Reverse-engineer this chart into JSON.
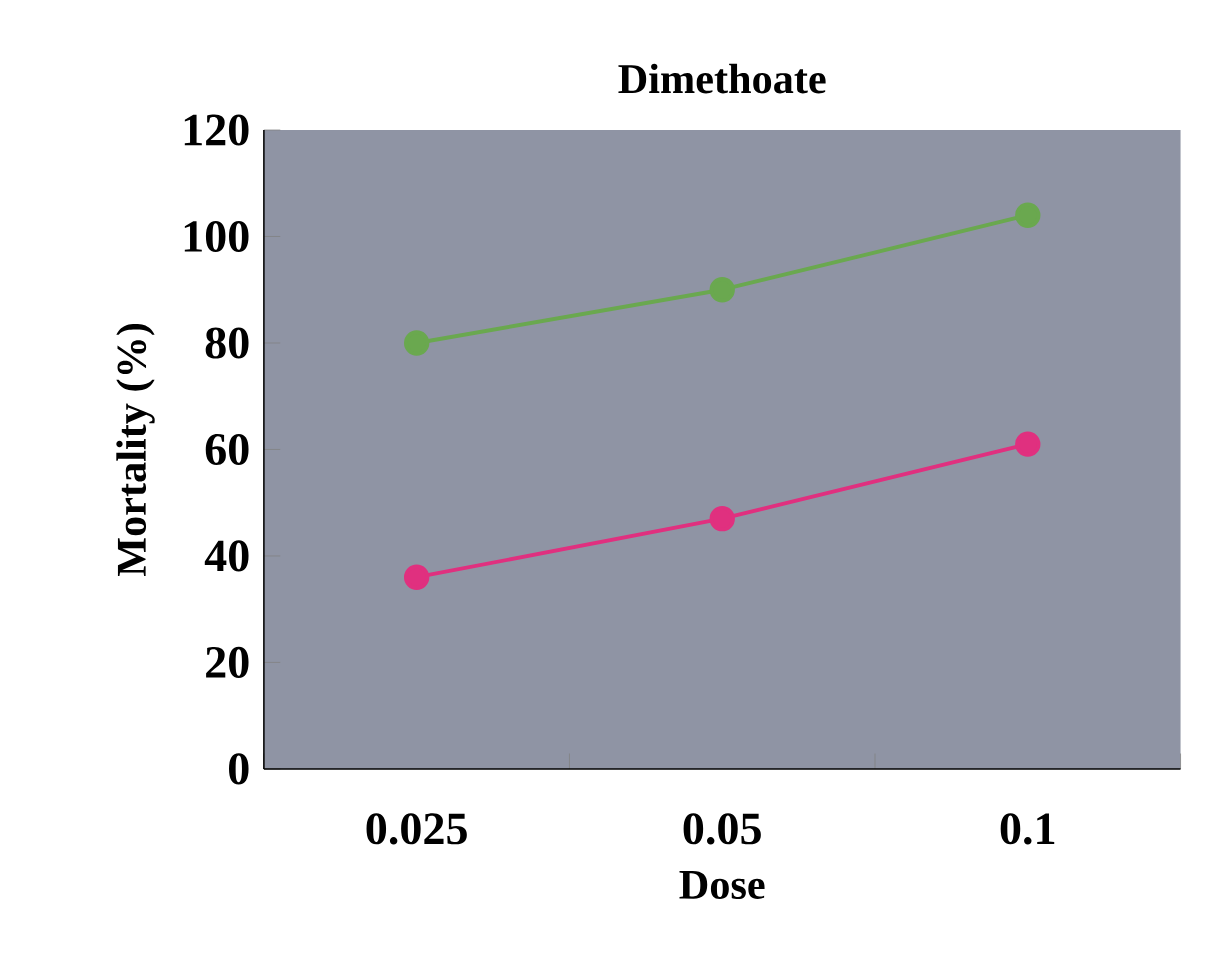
{
  "chart_data": {
    "type": "line",
    "title": "Dimethoate",
    "xlabel": "Dose",
    "ylabel": "Mortality (%)",
    "categories": [
      "0.025",
      "0.05",
      "0.1"
    ],
    "series": [
      {
        "color": "#6aa84f",
        "values": [
          80,
          90,
          104
        ]
      },
      {
        "color": "#e0307f",
        "values": [
          36,
          47,
          61
        ]
      }
    ],
    "ylim": [
      0,
      120
    ],
    "yticks": [
      0,
      20,
      40,
      60,
      80,
      100,
      120
    ],
    "marker": "circle",
    "grid": false
  }
}
